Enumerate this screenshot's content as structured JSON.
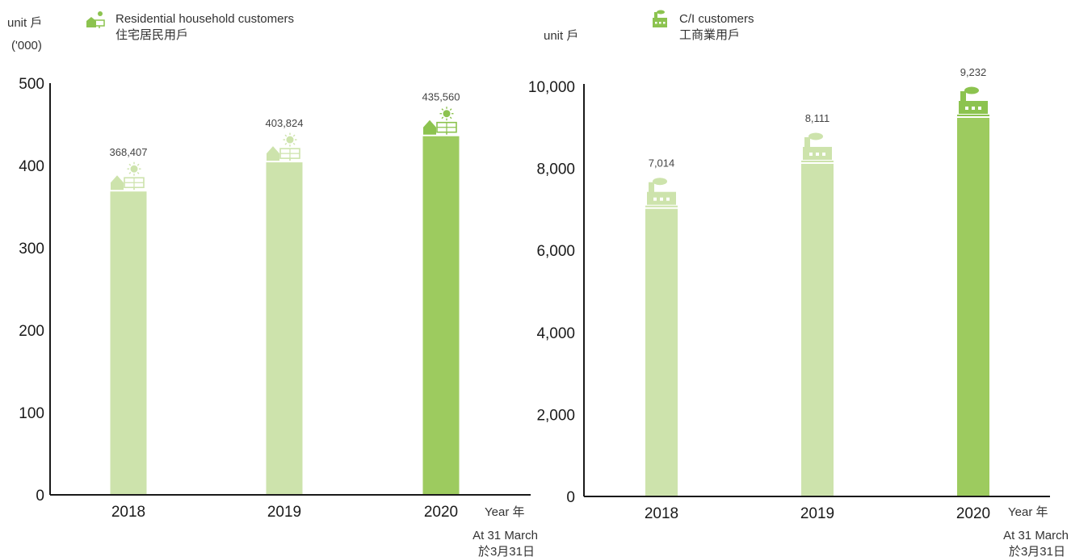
{
  "colors": {
    "light_green": "#cde3ac",
    "highlight_green": "#9dcb5f",
    "icon_green": "#8cc34f",
    "axis": "#1a1a1a"
  },
  "chart_data": [
    {
      "type": "bar",
      "title": "",
      "legend": {
        "icon": "house-solar-icon",
        "label_en": "Residential household customers",
        "label_zh": "住宅居民用戶"
      },
      "ylabel": "unit 戶",
      "yunit_note": "('000)",
      "xlabel": "Year 年",
      "note_en": "At 31 March",
      "note_zh": "於3月31日",
      "categories": [
        "2018",
        "2019",
        "2020"
      ],
      "values": [
        368.407,
        403.824,
        435.56
      ],
      "data_labels": [
        "368,407",
        "403,824",
        "435,560"
      ],
      "highlight_index": 2,
      "bar_icon": "house-solar-icon",
      "ylim": [
        0,
        500
      ],
      "yticks": [
        0,
        100,
        200,
        300,
        400,
        500
      ],
      "ytick_labels": [
        "0",
        "100",
        "200",
        "300",
        "400",
        "500"
      ],
      "grid": false
    },
    {
      "type": "bar",
      "title": "",
      "legend": {
        "icon": "factory-icon",
        "label_en": "C/I customers",
        "label_zh": "工商業用戶"
      },
      "ylabel": "unit 戶",
      "yunit_note": "",
      "xlabel": "Year 年",
      "note_en": "At 31 March",
      "note_zh": "於3月31日",
      "categories": [
        "2018",
        "2019",
        "2020"
      ],
      "values": [
        7014,
        8111,
        9232
      ],
      "data_labels": [
        "7,014",
        "8,111",
        "9,232"
      ],
      "highlight_index": 2,
      "bar_icon": "factory-icon",
      "ylim": [
        0,
        10000
      ],
      "yticks": [
        0,
        2000,
        4000,
        6000,
        8000,
        10000
      ],
      "ytick_labels": [
        "0",
        "2,000",
        "4,000",
        "6,000",
        "8,000",
        "10,000"
      ],
      "grid": false
    }
  ]
}
